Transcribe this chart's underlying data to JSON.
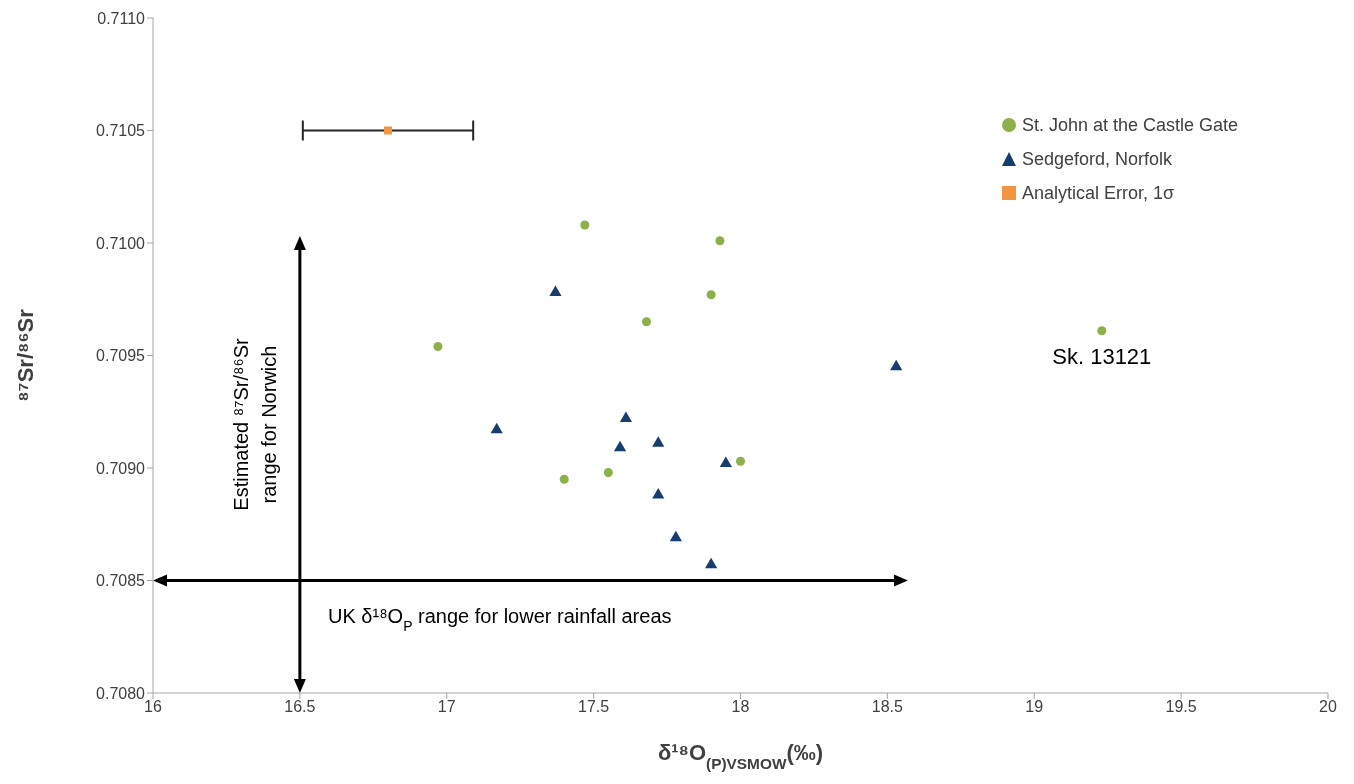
{
  "chart_data": {
    "type": "scatter",
    "xlabel": "δ¹⁸O$_{(P)VSMOW}$(‰)",
    "ylabel": "⁸⁷Sr/⁸⁶Sr",
    "xlim": [
      16,
      20
    ],
    "xticks": [
      16,
      16.5,
      17,
      17.5,
      18,
      18.5,
      19,
      19.5,
      20
    ],
    "ylim": [
      0.708,
      0.711
    ],
    "yticks": [
      {
        "value": 0.708,
        "label": "0.7080"
      },
      0.7085,
      {
        "value": 0.709,
        "label": "0.7090"
      },
      0.7095,
      {
        "value": 0.71,
        "label": "0.7100"
      },
      0.7105,
      {
        "value": 0.711,
        "label": "0.7110"
      }
    ],
    "grid": false,
    "legend": "top right",
    "series": [
      {
        "name": "St. John at the Castle Gate",
        "color": "#8db04a",
        "marker": "circle",
        "x": [
          17.47,
          17.93,
          17.9,
          17.68,
          18.0,
          17.55,
          17.4,
          16.97,
          19.23
        ],
        "values": [
          0.71008,
          0.71001,
          0.70977,
          0.70965,
          0.70903,
          0.70898,
          0.70895,
          0.70954,
          0.70961
        ]
      },
      {
        "name": "Sedgeford, Norfolk",
        "color": "#173c6e",
        "marker": "triangle",
        "x": [
          17.37,
          17.17,
          18.53,
          17.61,
          17.59,
          17.72,
          17.95,
          17.72,
          17.78,
          17.9
        ],
        "values": [
          0.70978,
          0.70917,
          0.70945,
          0.70922,
          0.70909,
          0.70911,
          0.70902,
          0.70888,
          0.70869,
          0.70857
        ]
      },
      {
        "name": "Analytical Error, 1σ",
        "color": "#f39440",
        "marker": "square",
        "x": [
          16.8
        ],
        "values": [
          0.7105
        ],
        "xerrors": [
          0.29
        ]
      }
    ],
    "ref_lines": [
      {
        "axis": "y",
        "value": 0.7085,
        "label": "UK δ¹⁸O$_{P}$ range for lower rainfall areas",
        "color": "#000000"
      },
      {
        "axis": "x",
        "value": 16.5,
        "label": "Estimated ⁸⁷Sr/⁸⁶Sr range for Norwich",
        "color": "#000000"
      }
    ],
    "annotations": [
      {
        "text": "Sk. 13121",
        "x": 19.23,
        "y": 0.70961
      }
    ]
  }
}
